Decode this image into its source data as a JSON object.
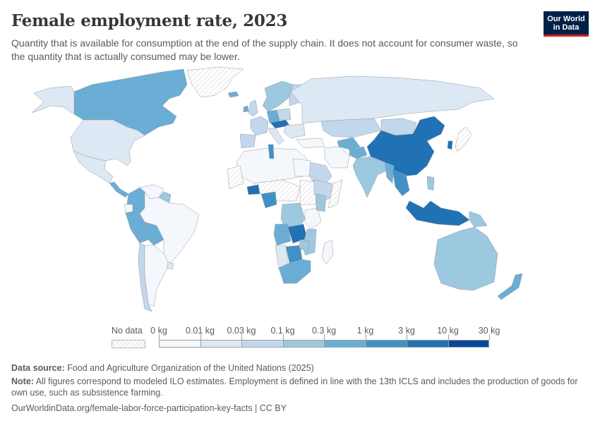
{
  "header": {
    "title": "Female employment rate, 2023",
    "subtitle": "Quantity that is available for consumption at the end of the supply chain. It does not account for consumer waste, so the quantity that is actually consumed may be lower.",
    "logo_line1": "Our World",
    "logo_line2": "in Data"
  },
  "chart_data": {
    "type": "choropleth-map",
    "title": "Female employment rate, 2023",
    "subtitle": "Quantity that is available for consumption at the end of the supply chain. It does not account for consumer waste, so the quantity that is actually consumed may be lower.",
    "unit": "kg",
    "legend": {
      "no_data_label": "No data",
      "no_data_color": "#e6e6e6",
      "bins": [
        {
          "from": "0 kg",
          "to": "0.01 kg",
          "color": "#f4f8fd"
        },
        {
          "from": "0.01 kg",
          "to": "0.03 kg",
          "color": "#dde8f5"
        },
        {
          "from": "0.03 kg",
          "to": "0.1 kg",
          "color": "#c2d7ec"
        },
        {
          "from": "0.1 kg",
          "to": "0.3 kg",
          "color": "#9cc8e0"
        },
        {
          "from": "0.3 kg",
          "to": "1 kg",
          "color": "#6aaed6"
        },
        {
          "from": "1 kg",
          "to": "3 kg",
          "color": "#4191c6"
        },
        {
          "from": "3 kg",
          "to": "10 kg",
          "color": "#2171b5"
        },
        {
          "from": "10 kg",
          "to": "30 kg",
          "color": "#08479c"
        }
      ],
      "tick_labels": [
        "0 kg",
        "0.01 kg",
        "0.03 kg",
        "0.1 kg",
        "0.3 kg",
        "1 kg",
        "3 kg",
        "10 kg",
        "30 kg"
      ]
    },
    "regions": [
      {
        "name": "Canada",
        "bin": 4
      },
      {
        "name": "United States",
        "bin": 1
      },
      {
        "name": "Alaska",
        "bin": 1
      },
      {
        "name": "Greenland",
        "bin": -1
      },
      {
        "name": "Iceland",
        "bin": 4
      },
      {
        "name": "Mexico",
        "bin": 1
      },
      {
        "name": "Central America",
        "bin": 4
      },
      {
        "name": "Colombia",
        "bin": 4
      },
      {
        "name": "Venezuela",
        "bin": 0
      },
      {
        "name": "Guyana/Suriname",
        "bin": 3
      },
      {
        "name": "Ecuador",
        "bin": 0
      },
      {
        "name": "Peru",
        "bin": 4
      },
      {
        "name": "Bolivia",
        "bin": 4
      },
      {
        "name": "Brazil",
        "bin": 0
      },
      {
        "name": "Chile",
        "bin": 2
      },
      {
        "name": "Argentina",
        "bin": 0
      },
      {
        "name": "Uruguay",
        "bin": 1
      },
      {
        "name": "Scandinavia",
        "bin": 3
      },
      {
        "name": "Finland",
        "bin": 2
      },
      {
        "name": "United Kingdom",
        "bin": 2
      },
      {
        "name": "Ireland",
        "bin": 4
      },
      {
        "name": "France",
        "bin": 2
      },
      {
        "name": "Iberia",
        "bin": 2
      },
      {
        "name": "Germany",
        "bin": 4
      },
      {
        "name": "Austria/Hungary",
        "bin": 6
      },
      {
        "name": "Poland",
        "bin": 2
      },
      {
        "name": "Italy",
        "bin": 1
      },
      {
        "name": "Balkans",
        "bin": 1
      },
      {
        "name": "Russia",
        "bin": 1
      },
      {
        "name": "Kazakhstan",
        "bin": 2
      },
      {
        "name": "Mongolia",
        "bin": 2
      },
      {
        "name": "China",
        "bin": 6
      },
      {
        "name": "South Korea",
        "bin": 6
      },
      {
        "name": "Japan",
        "bin": -1
      },
      {
        "name": "Turkmenistan/Uzbekistan",
        "bin": 4
      },
      {
        "name": "Afghanistan",
        "bin": 4
      },
      {
        "name": "Iran",
        "bin": 0
      },
      {
        "name": "Turkey",
        "bin": 0
      },
      {
        "name": "Saudi Arabia",
        "bin": 2
      },
      {
        "name": "India",
        "bin": 3
      },
      {
        "name": "Myanmar",
        "bin": 4
      },
      {
        "name": "Thailand/Vietnam",
        "bin": 5
      },
      {
        "name": "Philippines",
        "bin": 3
      },
      {
        "name": "Indonesia",
        "bin": 6
      },
      {
        "name": "Papua New Guinea",
        "bin": 3
      },
      {
        "name": "Australia",
        "bin": 3
      },
      {
        "name": "New Zealand",
        "bin": 4
      },
      {
        "name": "North Africa",
        "bin": 0
      },
      {
        "name": "Tunisia",
        "bin": 5
      },
      {
        "name": "Western Sahara/Mauritania",
        "bin": -1
      },
      {
        "name": "Sahel (Niger/Chad)",
        "bin": -1
      },
      {
        "name": "Sudan",
        "bin": -1
      },
      {
        "name": "Egypt",
        "bin": 0
      },
      {
        "name": "Burkina Faso",
        "bin": 6
      },
      {
        "name": "Nigeria",
        "bin": 5
      },
      {
        "name": "Ethiopia",
        "bin": 2
      },
      {
        "name": "Somalia",
        "bin": -1
      },
      {
        "name": "DR Congo",
        "bin": 3
      },
      {
        "name": "Tanzania",
        "bin": 0
      },
      {
        "name": "Kenya",
        "bin": 3
      },
      {
        "name": "Angola",
        "bin": 4
      },
      {
        "name": "Zambia",
        "bin": 6
      },
      {
        "name": "Mozambique",
        "bin": 3
      },
      {
        "name": "Namibia",
        "bin": 1
      },
      {
        "name": "Botswana",
        "bin": 5
      },
      {
        "name": "Zimbabwe",
        "bin": 3
      },
      {
        "name": "South Africa",
        "bin": 4
      },
      {
        "name": "Madagascar",
        "bin": 0
      }
    ]
  },
  "footer": {
    "source_label": "Data source:",
    "source_text": "Food and Agriculture Organization of the United Nations (2025)",
    "note_label": "Note:",
    "note_text": "All figures correspond to modeled ILO estimates. Employment is defined in line with the 13th ICLS and includes the production of goods for own use, such as subsistence farming.",
    "url_text": "OurWorldinData.org/female-labor-force-participation-key-facts | CC BY"
  }
}
